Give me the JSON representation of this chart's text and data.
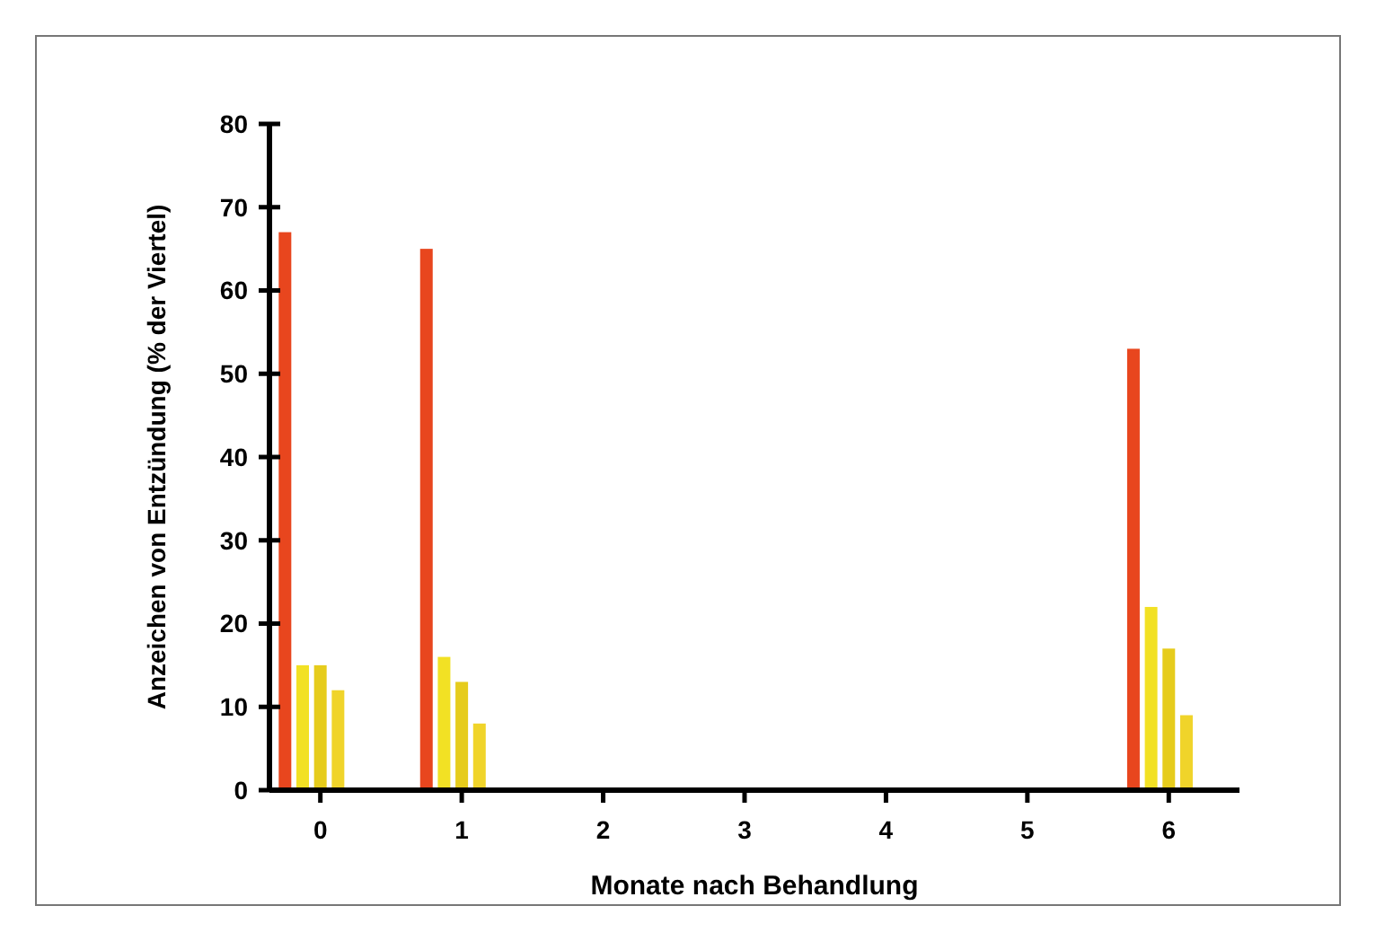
{
  "chart_data": {
    "type": "bar",
    "xlabel": "Monate nach Behandlung",
    "ylabel": "Anzeichen von Entzündung (% der Viertel)",
    "xlim": [
      -0.36,
      6.5
    ],
    "xticks": [
      0,
      1,
      2,
      3,
      4,
      5,
      6
    ],
    "ylim": [
      0,
      80
    ],
    "yticks": [
      0,
      10,
      20,
      30,
      40,
      50,
      60,
      70,
      80
    ],
    "grid": false,
    "series": [
      {
        "color": "#e8461e",
        "x": [
          0,
          1,
          6
        ],
        "values": [
          67,
          65,
          53
        ]
      },
      {
        "color": "#f2e124",
        "x": [
          0,
          1,
          6
        ],
        "values": [
          15,
          16,
          22
        ]
      },
      {
        "color": "#e6cc1c",
        "x": [
          0,
          1,
          6
        ],
        "values": [
          15,
          13,
          17
        ]
      },
      {
        "color": "#f0d42a",
        "x": [
          0,
          1,
          6
        ],
        "values": [
          12,
          8,
          9
        ]
      }
    ]
  }
}
